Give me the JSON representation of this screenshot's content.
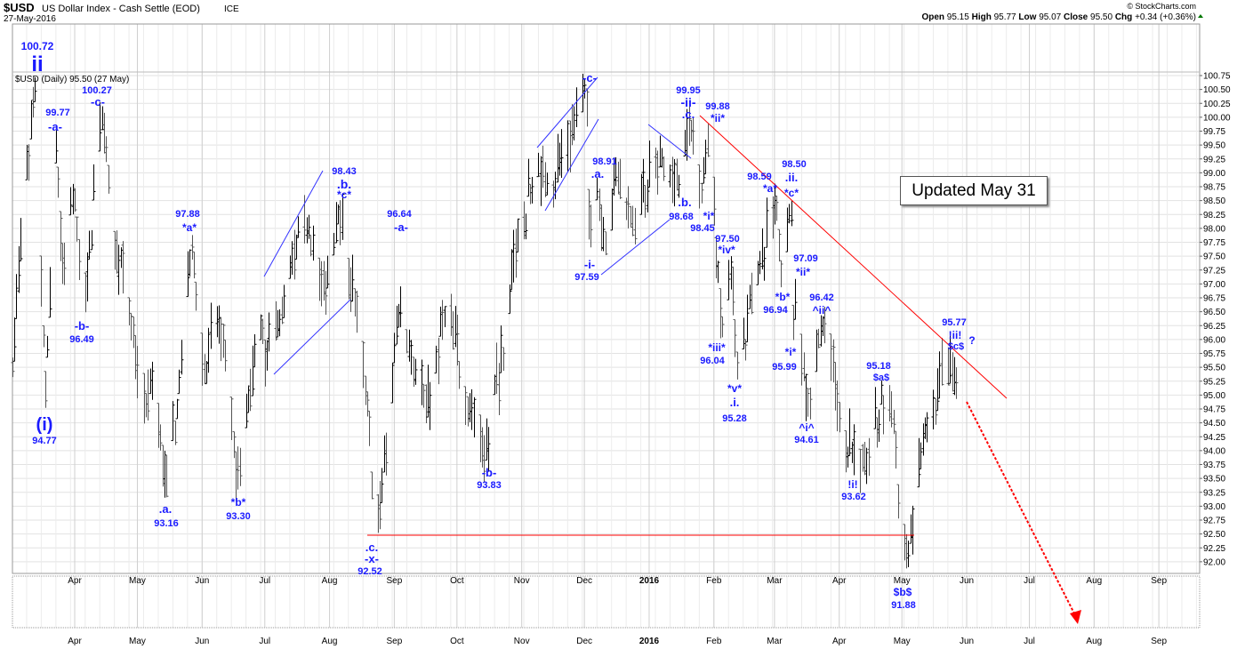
{
  "header": {
    "symbol": "$USD",
    "name": "US Dollar Index - Cash Settle (EOD)",
    "exchange": "ICE",
    "date": "27-May-2016",
    "copyright": "© StockCharts.com",
    "panel_label": "$USD (Daily) 95.50 (27 May)",
    "ohlc": {
      "open_label": "Open",
      "open": "95.15",
      "high_label": "High",
      "high": "95.77",
      "low_label": "Low",
      "low": "95.07",
      "close_label": "Close",
      "close": "95.50",
      "chg_label": "Chg",
      "chg": "+0.34 (+0.36%)"
    }
  },
  "note": "Updated May 31",
  "colors": {
    "annotation": "#1a1aff",
    "trend_red": "#ff0000",
    "trend_blue": "#3333ff",
    "bar": "#000000"
  },
  "chart_data": {
    "type": "ohlc",
    "title": "$USD US Dollar Index - Cash Settle (EOD)",
    "ylim": [
      92.0,
      100.75
    ],
    "y_ticks": [
      "100.75",
      "100.50",
      "100.25",
      "100.00",
      "99.75",
      "99.50",
      "99.25",
      "99.00",
      "98.75",
      "98.50",
      "98.25",
      "98.00",
      "97.75",
      "97.50",
      "97.25",
      "97.00",
      "96.75",
      "96.50",
      "96.25",
      "96.00",
      "95.75",
      "95.50",
      "95.25",
      "95.00",
      "94.75",
      "94.50",
      "94.25",
      "94.00",
      "93.75",
      "93.50",
      "93.25",
      "93.00",
      "92.75",
      "92.50",
      "92.25",
      "92.00"
    ],
    "x_ticks": [
      {
        "label": "Apr",
        "date": "2015-04-01"
      },
      {
        "label": "May",
        "date": "2015-05-01"
      },
      {
        "label": "Jun",
        "date": "2015-06-01"
      },
      {
        "label": "Jul",
        "date": "2015-07-01"
      },
      {
        "label": "Aug",
        "date": "2015-08-01"
      },
      {
        "label": "Sep",
        "date": "2015-09-01"
      },
      {
        "label": "Oct",
        "date": "2015-10-01"
      },
      {
        "label": "Nov",
        "date": "2015-11-01"
      },
      {
        "label": "Dec",
        "date": "2015-12-01"
      },
      {
        "label": "2016",
        "date": "2016-01-01"
      },
      {
        "label": "Feb",
        "date": "2016-02-01"
      },
      {
        "label": "Mar",
        "date": "2016-03-01"
      },
      {
        "label": "Apr",
        "date": "2016-04-01"
      },
      {
        "label": "May",
        "date": "2016-05-01"
      },
      {
        "label": "Jun",
        "date": "2016-06-01"
      },
      {
        "label": "Jul",
        "date": "2016-07-01"
      },
      {
        "label": "Aug",
        "date": "2016-08-01"
      },
      {
        "label": "Sep",
        "date": "2016-09-01"
      }
    ],
    "pivots": [
      [
        "2015-03-02",
        95.5
      ],
      [
        "2015-03-06",
        97.8
      ],
      [
        "2015-03-13",
        100.72
      ],
      [
        "2015-03-18",
        94.77
      ],
      [
        "2015-03-23",
        99.77
      ],
      [
        "2015-03-26",
        97.0
      ],
      [
        "2015-03-31",
        98.8
      ],
      [
        "2015-04-06",
        96.49
      ],
      [
        "2015-04-13",
        100.27
      ],
      [
        "2015-04-20",
        97.6
      ],
      [
        "2015-04-24",
        97.3
      ],
      [
        "2015-05-05",
        94.6
      ],
      [
        "2015-05-08",
        95.6
      ],
      [
        "2015-05-15",
        93.16
      ],
      [
        "2015-05-27",
        97.88
      ],
      [
        "2015-06-02",
        95.2
      ],
      [
        "2015-06-08",
        96.6
      ],
      [
        "2015-06-18",
        93.3
      ],
      [
        "2015-06-26",
        95.8
      ],
      [
        "2015-07-08",
        96.3
      ],
      [
        "2015-07-21",
        98.2
      ],
      [
        "2015-07-29",
        96.7
      ],
      [
        "2015-08-05",
        98.43
      ],
      [
        "2015-08-14",
        96.5
      ],
      [
        "2015-08-24",
        92.52
      ],
      [
        "2015-09-03",
        96.64
      ],
      [
        "2015-09-17",
        94.6
      ],
      [
        "2015-09-25",
        96.6
      ],
      [
        "2015-10-15",
        93.83
      ],
      [
        "2015-10-28",
        97.5
      ],
      [
        "2015-11-10",
        99.3
      ],
      [
        "2015-11-13",
        98.6
      ],
      [
        "2015-12-02",
        100.51
      ],
      [
        "2015-12-03",
        97.8
      ],
      [
        "2015-12-07",
        98.91
      ],
      [
        "2015-12-10",
        97.59
      ],
      [
        "2015-12-17",
        99.2
      ],
      [
        "2015-12-22",
        98.0
      ],
      [
        "2016-01-05",
        99.4
      ],
      [
        "2016-01-14",
        98.68
      ],
      [
        "2016-01-21",
        99.95
      ],
      [
        "2016-01-26",
        98.45
      ],
      [
        "2016-01-29",
        99.88
      ],
      [
        "2016-02-05",
        96.04
      ],
      [
        "2016-02-09",
        97.5
      ],
      [
        "2016-02-12",
        95.28
      ],
      [
        "2016-02-22",
        97.2
      ],
      [
        "2016-03-02",
        98.59
      ],
      [
        "2016-03-04",
        96.94
      ],
      [
        "2016-03-09",
        98.5
      ],
      [
        "2016-03-10",
        95.99
      ],
      [
        "2016-03-11",
        97.09
      ],
      [
        "2016-03-17",
        94.61
      ],
      [
        "2016-03-24",
        96.42
      ],
      [
        "2016-04-01",
        94.6
      ],
      [
        "2016-04-12",
        93.62
      ],
      [
        "2016-04-25",
        95.18
      ],
      [
        "2016-05-03",
        91.88
      ],
      [
        "2016-05-11",
        94.2
      ],
      [
        "2016-05-17",
        94.7
      ],
      [
        "2016-05-20",
        95.6
      ],
      [
        "2016-05-25",
        95.77
      ],
      [
        "2016-05-26",
        95.0
      ],
      [
        "2016-05-27",
        95.5
      ]
    ],
    "horizontal_line": {
      "price": 92.52,
      "from": "2015-08-21",
      "to": "2016-05-13"
    },
    "annotations": [
      "100.72",
      "ii",
      "(i)",
      "94.77",
      "99.77",
      "-a-",
      "100.27",
      "-c-",
      "-b-",
      "96.49",
      ".a.",
      "93.16",
      "97.88",
      "*a*",
      "*b*",
      "93.30",
      "98.43",
      ".b.",
      "*c*",
      "96.64",
      "-a-",
      ".c.",
      "-x-",
      "92.52",
      "-b-",
      "93.83",
      "-c-",
      "98.91",
      ".a.",
      "-i-",
      "97.59",
      "99.95",
      "-ii-",
      ".c.",
      "99.88",
      "*ii*",
      ".b.",
      "98.68",
      "*i*",
      "98.45",
      "97.50",
      "*iv*",
      "*iii*",
      "96.04",
      "*v*",
      ".i.",
      "95.28",
      "98.59",
      "*a*",
      "98.50",
      ".ii.",
      "*c*",
      "97.09",
      "*ii*",
      "*b*",
      "96.94",
      "*i*",
      "95.99",
      "96.42",
      "^ii^",
      "^i^",
      "94.61",
      "95.18",
      "$a$",
      "!i!",
      "93.62",
      "95.77",
      "!ii!",
      "$c$",
      "?",
      "$b$",
      "91.88"
    ]
  }
}
